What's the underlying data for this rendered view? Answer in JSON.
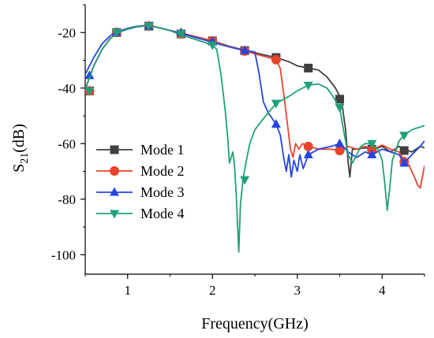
{
  "chart_data": {
    "type": "line",
    "title": "",
    "xlabel": "Frequency(GHz)",
    "ylabel": {
      "main": "S",
      "sub": "21",
      "unit": "(dB)"
    },
    "xlim": [
      0.5,
      4.5
    ],
    "ylim": [
      -107,
      -10
    ],
    "xticks": [
      1,
      2,
      3,
      4
    ],
    "xtick_labels": [
      "1",
      "2",
      "3",
      "4"
    ],
    "yticks": [
      -20,
      -40,
      -60,
      -80,
      -100
    ],
    "ytick_labels": [
      "-20",
      "-40",
      "-60",
      "-80",
      "-100"
    ],
    "grid": false,
    "legend_position": "lower-left",
    "series": [
      {
        "name": "Mode 1",
        "color": "#404040",
        "marker": "square",
        "points": [
          [
            0.5,
            -40.5
          ],
          [
            0.6,
            -32
          ],
          [
            0.7,
            -26
          ],
          [
            0.8,
            -22
          ],
          [
            0.9,
            -19.8
          ],
          [
            1.0,
            -18.8
          ],
          [
            1.1,
            -18
          ],
          [
            1.2,
            -17.6
          ],
          [
            1.3,
            -17.8
          ],
          [
            1.4,
            -18.5
          ],
          [
            1.5,
            -19.3
          ],
          [
            1.6,
            -20
          ],
          [
            1.8,
            -21.5
          ],
          [
            2.0,
            -23
          ],
          [
            2.2,
            -25
          ],
          [
            2.4,
            -26.5
          ],
          [
            2.6,
            -28
          ],
          [
            2.75,
            -29
          ],
          [
            2.9,
            -30.5
          ],
          [
            3.0,
            -32
          ],
          [
            3.13,
            -32.8
          ],
          [
            3.25,
            -33.5
          ],
          [
            3.35,
            -36
          ],
          [
            3.45,
            -40
          ],
          [
            3.52,
            -44
          ],
          [
            3.57,
            -55
          ],
          [
            3.6,
            -67
          ],
          [
            3.62,
            -72
          ],
          [
            3.65,
            -62
          ],
          [
            3.7,
            -62
          ],
          [
            3.8,
            -61.5
          ],
          [
            3.9,
            -62
          ],
          [
            4.0,
            -61
          ],
          [
            4.1,
            -63
          ],
          [
            4.2,
            -61
          ],
          [
            4.26,
            -62
          ],
          [
            4.35,
            -63
          ],
          [
            4.45,
            -61
          ],
          [
            4.5,
            -61.5
          ]
        ],
        "markers": [
          [
            0.55,
            -41
          ],
          [
            0.87,
            -20
          ],
          [
            1.25,
            -17.7
          ],
          [
            1.63,
            -20.5
          ],
          [
            2.0,
            -23
          ],
          [
            2.38,
            -26.5
          ],
          [
            2.75,
            -29
          ],
          [
            3.13,
            -32.8
          ],
          [
            3.5,
            -44
          ],
          [
            3.88,
            -62
          ],
          [
            4.26,
            -62.5
          ]
        ]
      },
      {
        "name": "Mode 2",
        "color": "#e8442c",
        "marker": "circle",
        "points": [
          [
            0.5,
            -40.5
          ],
          [
            0.6,
            -32
          ],
          [
            0.7,
            -26
          ],
          [
            0.8,
            -22
          ],
          [
            0.9,
            -19.8
          ],
          [
            1.0,
            -18.8
          ],
          [
            1.1,
            -18
          ],
          [
            1.2,
            -17.6
          ],
          [
            1.3,
            -17.8
          ],
          [
            1.4,
            -18.5
          ],
          [
            1.5,
            -19.3
          ],
          [
            1.6,
            -20
          ],
          [
            1.8,
            -21.5
          ],
          [
            2.0,
            -23
          ],
          [
            2.2,
            -25
          ],
          [
            2.4,
            -26.8
          ],
          [
            2.6,
            -28.5
          ],
          [
            2.75,
            -29.8
          ],
          [
            2.8,
            -33
          ],
          [
            2.84,
            -42
          ],
          [
            2.88,
            -52
          ],
          [
            2.92,
            -62
          ],
          [
            2.95,
            -65
          ],
          [
            2.98,
            -60
          ],
          [
            3.02,
            -62
          ],
          [
            3.06,
            -60
          ],
          [
            3.13,
            -61
          ],
          [
            3.25,
            -62
          ],
          [
            3.4,
            -62
          ],
          [
            3.5,
            -62.5
          ],
          [
            3.6,
            -61
          ],
          [
            3.7,
            -62
          ],
          [
            3.8,
            -61
          ],
          [
            3.9,
            -62
          ],
          [
            4.0,
            -60.5
          ],
          [
            4.1,
            -62
          ],
          [
            4.2,
            -63
          ],
          [
            4.26,
            -66
          ],
          [
            4.32,
            -68
          ],
          [
            4.38,
            -72
          ],
          [
            4.42,
            -75
          ],
          [
            4.45,
            -76
          ],
          [
            4.48,
            -71
          ],
          [
            4.5,
            -68
          ]
        ],
        "markers": [
          [
            0.55,
            -41
          ],
          [
            0.87,
            -20
          ],
          [
            1.25,
            -17.7
          ],
          [
            1.63,
            -20.5
          ],
          [
            2.0,
            -23
          ],
          [
            2.38,
            -26.7
          ],
          [
            2.75,
            -29.8
          ],
          [
            3.13,
            -61
          ],
          [
            3.5,
            -62.5
          ],
          [
            3.88,
            -62.5
          ],
          [
            4.26,
            -66.5
          ]
        ]
      },
      {
        "name": "Mode 3",
        "color": "#2445e0",
        "marker": "triangle-up",
        "points": [
          [
            0.5,
            -35
          ],
          [
            0.6,
            -29
          ],
          [
            0.7,
            -24
          ],
          [
            0.8,
            -21
          ],
          [
            0.9,
            -19.5
          ],
          [
            1.0,
            -18.5
          ],
          [
            1.1,
            -17.8
          ],
          [
            1.2,
            -17.5
          ],
          [
            1.3,
            -17.8
          ],
          [
            1.4,
            -18.5
          ],
          [
            1.5,
            -19.3
          ],
          [
            1.6,
            -20
          ],
          [
            1.8,
            -21.8
          ],
          [
            2.0,
            -23.5
          ],
          [
            2.2,
            -25.2
          ],
          [
            2.38,
            -26.5
          ],
          [
            2.5,
            -27
          ],
          [
            2.55,
            -35
          ],
          [
            2.6,
            -45
          ],
          [
            2.66,
            -49
          ],
          [
            2.75,
            -53
          ],
          [
            2.8,
            -57
          ],
          [
            2.84,
            -65
          ],
          [
            2.87,
            -70
          ],
          [
            2.9,
            -64
          ],
          [
            2.93,
            -72
          ],
          [
            2.96,
            -66
          ],
          [
            3.0,
            -70
          ],
          [
            3.03,
            -64
          ],
          [
            3.07,
            -69
          ],
          [
            3.13,
            -64
          ],
          [
            3.25,
            -62
          ],
          [
            3.4,
            -61
          ],
          [
            3.5,
            -60
          ],
          [
            3.6,
            -63
          ],
          [
            3.7,
            -65
          ],
          [
            3.8,
            -63
          ],
          [
            3.88,
            -64
          ],
          [
            4.0,
            -62
          ],
          [
            4.1,
            -63
          ],
          [
            4.2,
            -64
          ],
          [
            4.26,
            -67
          ],
          [
            4.35,
            -64
          ],
          [
            4.45,
            -61
          ],
          [
            4.5,
            -59
          ]
        ],
        "markers": [
          [
            0.55,
            -35.5
          ],
          [
            0.87,
            -20
          ],
          [
            1.25,
            -17.7
          ],
          [
            1.63,
            -20
          ],
          [
            2.0,
            -23.3
          ],
          [
            2.38,
            -26.5
          ],
          [
            2.75,
            -53
          ],
          [
            3.13,
            -64
          ],
          [
            3.5,
            -60
          ],
          [
            3.88,
            -64
          ],
          [
            4.26,
            -67
          ]
        ]
      },
      {
        "name": "Mode 4",
        "color": "#20a07a",
        "marker": "triangle-down",
        "points": [
          [
            0.5,
            -40.5
          ],
          [
            0.6,
            -32
          ],
          [
            0.7,
            -26
          ],
          [
            0.8,
            -22
          ],
          [
            0.9,
            -19.8
          ],
          [
            1.0,
            -18.8
          ],
          [
            1.1,
            -18
          ],
          [
            1.2,
            -17.6
          ],
          [
            1.3,
            -17.8
          ],
          [
            1.4,
            -18.5
          ],
          [
            1.5,
            -19.3
          ],
          [
            1.6,
            -20.5
          ],
          [
            1.8,
            -22.5
          ],
          [
            2.0,
            -24.5
          ],
          [
            2.05,
            -26
          ],
          [
            2.1,
            -35
          ],
          [
            2.15,
            -48
          ],
          [
            2.18,
            -58
          ],
          [
            2.2,
            -67
          ],
          [
            2.22,
            -65
          ],
          [
            2.24,
            -63
          ],
          [
            2.26,
            -68
          ],
          [
            2.28,
            -78
          ],
          [
            2.3,
            -92
          ],
          [
            2.31,
            -99
          ],
          [
            2.33,
            -82
          ],
          [
            2.36,
            -73
          ],
          [
            2.4,
            -66
          ],
          [
            2.44,
            -60
          ],
          [
            2.5,
            -55
          ],
          [
            2.6,
            -51
          ],
          [
            2.75,
            -45.5
          ],
          [
            2.9,
            -43
          ],
          [
            3.0,
            -41
          ],
          [
            3.13,
            -39
          ],
          [
            3.25,
            -38.5
          ],
          [
            3.35,
            -40
          ],
          [
            3.42,
            -43
          ],
          [
            3.5,
            -47
          ],
          [
            3.55,
            -56
          ],
          [
            3.6,
            -64
          ],
          [
            3.65,
            -67
          ],
          [
            3.7,
            -64
          ],
          [
            3.75,
            -61
          ],
          [
            3.8,
            -60
          ],
          [
            3.88,
            -60
          ],
          [
            3.95,
            -62
          ],
          [
            4.0,
            -66
          ],
          [
            4.03,
            -74
          ],
          [
            4.06,
            -84
          ],
          [
            4.09,
            -76
          ],
          [
            4.12,
            -66
          ],
          [
            4.2,
            -59
          ],
          [
            4.26,
            -57
          ],
          [
            4.35,
            -55
          ],
          [
            4.45,
            -54
          ],
          [
            4.5,
            -53.5
          ]
        ],
        "markers": [
          [
            0.55,
            -41
          ],
          [
            0.87,
            -20
          ],
          [
            1.25,
            -17.7
          ],
          [
            1.63,
            -20.5
          ],
          [
            2.0,
            -24.5
          ],
          [
            2.38,
            -73
          ],
          [
            2.75,
            -45.5
          ],
          [
            3.13,
            -39
          ],
          [
            3.5,
            -47
          ],
          [
            3.88,
            -60
          ],
          [
            4.26,
            -57
          ]
        ]
      }
    ]
  }
}
